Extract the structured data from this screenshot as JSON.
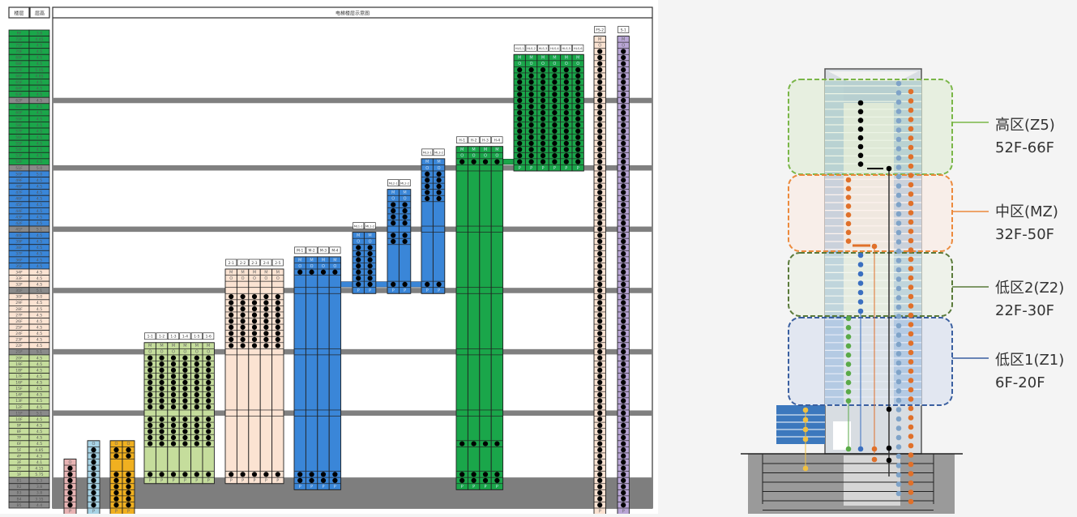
{
  "diagram": {
    "title": "电梯楼层示意图",
    "col_floor": "楼层",
    "col_height": "层高",
    "zone_colors": {
      "high": "#1aa64a",
      "mid": "#3a86d8",
      "low2": "#fbe3d2",
      "low1": "#c5dd9c",
      "refuge": "#8a8a8a",
      "base": "#8a8a8a"
    },
    "floors": [
      {
        "f": "RF",
        "h": "3.8",
        "z": "high"
      },
      {
        "f": "72F",
        "h": "4.45",
        "z": "high"
      },
      {
        "f": "71F",
        "h": "4.5",
        "z": "high"
      },
      {
        "f": "70F",
        "h": "4.5",
        "z": "high"
      },
      {
        "f": "69F",
        "h": "4.5",
        "z": "high"
      },
      {
        "f": "68F",
        "h": "4.5",
        "z": "high"
      },
      {
        "f": "67F",
        "h": "5.05",
        "z": "high"
      },
      {
        "f": "66F",
        "h": "4.85",
        "z": "high"
      },
      {
        "f": "65F",
        "h": "4.5",
        "z": "high"
      },
      {
        "f": "64F",
        "h": "4.5",
        "z": "high"
      },
      {
        "f": "63F",
        "h": "4.5",
        "z": "high"
      },
      {
        "f": "62F",
        "h": "4.5",
        "z": "refuge"
      },
      {
        "f": "61F",
        "h": "4.5",
        "z": "high"
      },
      {
        "f": "60F",
        "h": "4.5",
        "z": "high"
      },
      {
        "f": "59F",
        "h": "4.5",
        "z": "high"
      },
      {
        "f": "58F",
        "h": "4.5",
        "z": "high"
      },
      {
        "f": "57F",
        "h": "4.5",
        "z": "high"
      },
      {
        "f": "56F",
        "h": "4.5",
        "z": "high"
      },
      {
        "f": "55F",
        "h": "4.5",
        "z": "high"
      },
      {
        "f": "54F",
        "h": "4.5",
        "z": "high"
      },
      {
        "f": "53F",
        "h": "4.5",
        "z": "high"
      },
      {
        "f": "52F",
        "h": "4.5",
        "z": "high"
      },
      {
        "f": "51F",
        "h": "5.0",
        "z": "refuge"
      },
      {
        "f": "50F",
        "h": "5.0",
        "z": "mid"
      },
      {
        "f": "49F",
        "h": "4.5",
        "z": "mid"
      },
      {
        "f": "48F",
        "h": "4.5",
        "z": "mid"
      },
      {
        "f": "47F",
        "h": "4.5",
        "z": "mid"
      },
      {
        "f": "46F",
        "h": "4.5",
        "z": "mid"
      },
      {
        "f": "45F",
        "h": "4.5",
        "z": "mid"
      },
      {
        "f": "44F",
        "h": "4.5",
        "z": "mid"
      },
      {
        "f": "43F",
        "h": "4.5",
        "z": "mid"
      },
      {
        "f": "42F",
        "h": "4.5",
        "z": "mid"
      },
      {
        "f": "41F",
        "h": "5.1",
        "z": "refuge"
      },
      {
        "f": "40F",
        "h": "4.5",
        "z": "mid"
      },
      {
        "f": "39F",
        "h": "4.5",
        "z": "mid"
      },
      {
        "f": "38F",
        "h": "4.5",
        "z": "mid"
      },
      {
        "f": "37F",
        "h": "4.5",
        "z": "mid"
      },
      {
        "f": "36F",
        "h": "4.5",
        "z": "mid"
      },
      {
        "f": "35F",
        "h": "4.5",
        "z": "mid"
      },
      {
        "f": "34F",
        "h": "4.5",
        "z": "low2"
      },
      {
        "f": "33F",
        "h": "4.5",
        "z": "low2"
      },
      {
        "f": "32F",
        "h": "4.5",
        "z": "low2"
      },
      {
        "f": "31F",
        "h": "5.1",
        "z": "refuge"
      },
      {
        "f": "30F",
        "h": "5.0",
        "z": "low2"
      },
      {
        "f": "29F",
        "h": "4.5",
        "z": "low2"
      },
      {
        "f": "28F",
        "h": "4.5",
        "z": "low2"
      },
      {
        "f": "27F",
        "h": "4.5",
        "z": "low2"
      },
      {
        "f": "26F",
        "h": "4.5",
        "z": "low2"
      },
      {
        "f": "25F",
        "h": "4.5",
        "z": "low2"
      },
      {
        "f": "24F",
        "h": "4.5",
        "z": "low2"
      },
      {
        "f": "23F",
        "h": "4.5",
        "z": "low2"
      },
      {
        "f": "22F",
        "h": "4.5",
        "z": "low2"
      },
      {
        "f": "21F",
        "h": "5.1",
        "z": "refuge"
      },
      {
        "f": "20F",
        "h": "4.5",
        "z": "low1"
      },
      {
        "f": "19F",
        "h": "4.5",
        "z": "low1"
      },
      {
        "f": "18F",
        "h": "4.5",
        "z": "low1"
      },
      {
        "f": "17F",
        "h": "4.5",
        "z": "low1"
      },
      {
        "f": "16F",
        "h": "4.5",
        "z": "low1"
      },
      {
        "f": "15F",
        "h": "4.5",
        "z": "low1"
      },
      {
        "f": "14F",
        "h": "4.5",
        "z": "low1"
      },
      {
        "f": "13F",
        "h": "4.5",
        "z": "low1"
      },
      {
        "f": "12F",
        "h": "4.5",
        "z": "low1"
      },
      {
        "f": "11F",
        "h": "5.1",
        "z": "refuge"
      },
      {
        "f": "10F",
        "h": "4.5",
        "z": "low1"
      },
      {
        "f": "9F",
        "h": "4.5",
        "z": "low1"
      },
      {
        "f": "8F",
        "h": "4.5",
        "z": "low1"
      },
      {
        "f": "7F",
        "h": "4.5",
        "z": "low1"
      },
      {
        "f": "6F",
        "h": "4.5",
        "z": "low1"
      },
      {
        "f": "5F",
        "h": "4.85",
        "z": "low1"
      },
      {
        "f": "4F",
        "h": "4.3",
        "z": "low1"
      },
      {
        "f": "3F",
        "h": "4.1",
        "z": "low1"
      },
      {
        "f": "2F",
        "h": "4.15",
        "z": "low1"
      },
      {
        "f": "1F",
        "h": "5.75",
        "z": "low1"
      },
      {
        "f": "B1",
        "h": "5.3",
        "z": "base"
      },
      {
        "f": "B2",
        "h": "3.8",
        "z": "base"
      },
      {
        "f": "B3",
        "h": "3.8",
        "z": "base"
      },
      {
        "f": "B4",
        "h": "3.35",
        "z": "base"
      },
      {
        "f": "B5",
        "h": "4.4",
        "z": "base"
      }
    ],
    "cell_labels": {
      "machine": "M",
      "overhead": "O",
      "pit": "P"
    },
    "groups": [
      {
        "labels": [
          ""
        ],
        "color": "#e8b4b4",
        "top": "3F",
        "machine": false,
        "stops": [
          "2F..B5"
        ]
      },
      {
        "labels": [
          ""
        ],
        "color": "#a8d4e6",
        "top": "6F",
        "machine": false,
        "stops": [
          "5F..B5"
        ]
      },
      {
        "labels": [
          "",
          ""
        ],
        "color": "#f0b020",
        "top": "6F",
        "machine": false,
        "stops": [
          "5F..4F",
          "1F..B5"
        ]
      },
      {
        "labels": [
          "1-1",
          "1-2",
          "1-3",
          "1-4",
          "1-5",
          "1-6"
        ],
        "color": "#c5dd9c",
        "top": "22F",
        "machine": true,
        "stops": [
          "20F..12F",
          "10F..6F",
          "1F"
        ]
      },
      {
        "labels": [
          "2-1",
          "2-2",
          "2-3",
          "2-4",
          "2-5"
        ],
        "color": "#fbe3d2",
        "top": "34F",
        "machine": true,
        "stops": [
          "30F..22F",
          "1F"
        ]
      },
      {
        "labels": [
          "M-1",
          "M-2",
          "M-3",
          "M-4"
        ],
        "color": "#3a86d8",
        "top": "36F",
        "machine": true,
        "stops": [
          "34F",
          "1F..B1"
        ]
      },
      {
        "labels": [
          "ML1-1",
          "ML1-2"
        ],
        "color": "#3a86d8",
        "top": "40F",
        "machine": true,
        "stops": [
          "38F..32F"
        ]
      },
      {
        "labels": [
          "ML2-1",
          "ML2-2"
        ],
        "color": "#3a86d8",
        "top": "47F",
        "machine": true,
        "stops": [
          "45F..42F",
          "40F..39F",
          "32F"
        ]
      },
      {
        "labels": [
          "ML3-1",
          "ML3-2"
        ],
        "color": "#3a86d8",
        "top": "52F",
        "machine": true,
        "stops": [
          "50F..46F",
          "32F"
        ]
      },
      {
        "labels": [
          "H-1",
          "H-2",
          "H-3",
          "H-4"
        ],
        "color": "#1aa64a",
        "top": "54F",
        "machine": true,
        "stops": [
          "52F",
          "6F",
          "1F..B1"
        ]
      },
      {
        "labels": [
          "HLS-1",
          "HLS-2",
          "HLS-3",
          "HLS-4",
          "HLS-5",
          "HLS-6"
        ],
        "color": "#1aa64a",
        "top": "69F",
        "machine": true,
        "stops": [
          "67F..52F"
        ]
      },
      {
        "labels": [
          "FS-2"
        ],
        "color": "#fbe3d2",
        "top": "72F",
        "machine": true,
        "stops": [
          "70F..B5"
        ]
      },
      {
        "labels": [
          "S-1"
        ],
        "color": "#b9a6d6",
        "top": "72F",
        "machine": true,
        "stops": [
          "70F..B5"
        ]
      }
    ]
  },
  "building": {
    "zones": [
      {
        "name": "高区(Z5)",
        "range": "52F-66F",
        "color": "#7ab648",
        "fill": "#dcebd0"
      },
      {
        "name": "中区(MZ)",
        "range": "32F-50F",
        "color": "#ec8a3c",
        "fill": "#fbe9e0"
      },
      {
        "name": "低区2(Z2)",
        "range": "22F-30F",
        "color": "#5a7a3a",
        "fill": "#e9f0e2"
      },
      {
        "name": "低区1(Z1)",
        "range": "6F-20F",
        "color": "#3a5fa0",
        "fill": "#d4ddee"
      }
    ]
  }
}
